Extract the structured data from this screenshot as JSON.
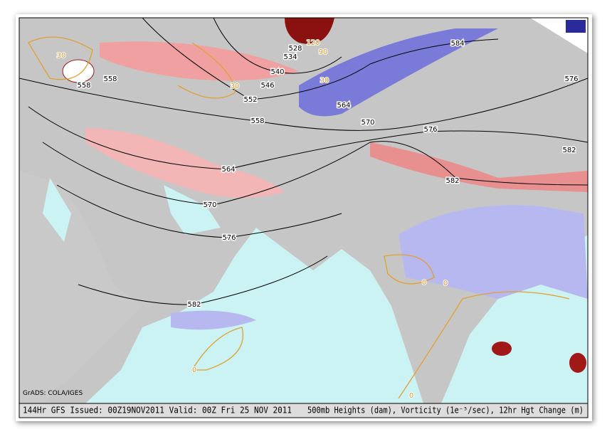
{
  "credit": "GrADS: COLA/IGES",
  "footer_left": "144Hr GFS Issued: 00Z19NOV2011 Valid: 00Z Fri 25 NOV 2011",
  "footer_right": "500mb Heights (dam), Vorticity (1e⁻⁵/sec), 12hr Hgt Change (m)",
  "height_labels": [
    558,
    558,
    552,
    546,
    540,
    534,
    528,
    558,
    564,
    570,
    576,
    582,
    564,
    570,
    576,
    584,
    576,
    582,
    582
  ],
  "change_labels": [
    30,
    30,
    120,
    90,
    30,
    0,
    0,
    0,
    0
  ]
}
